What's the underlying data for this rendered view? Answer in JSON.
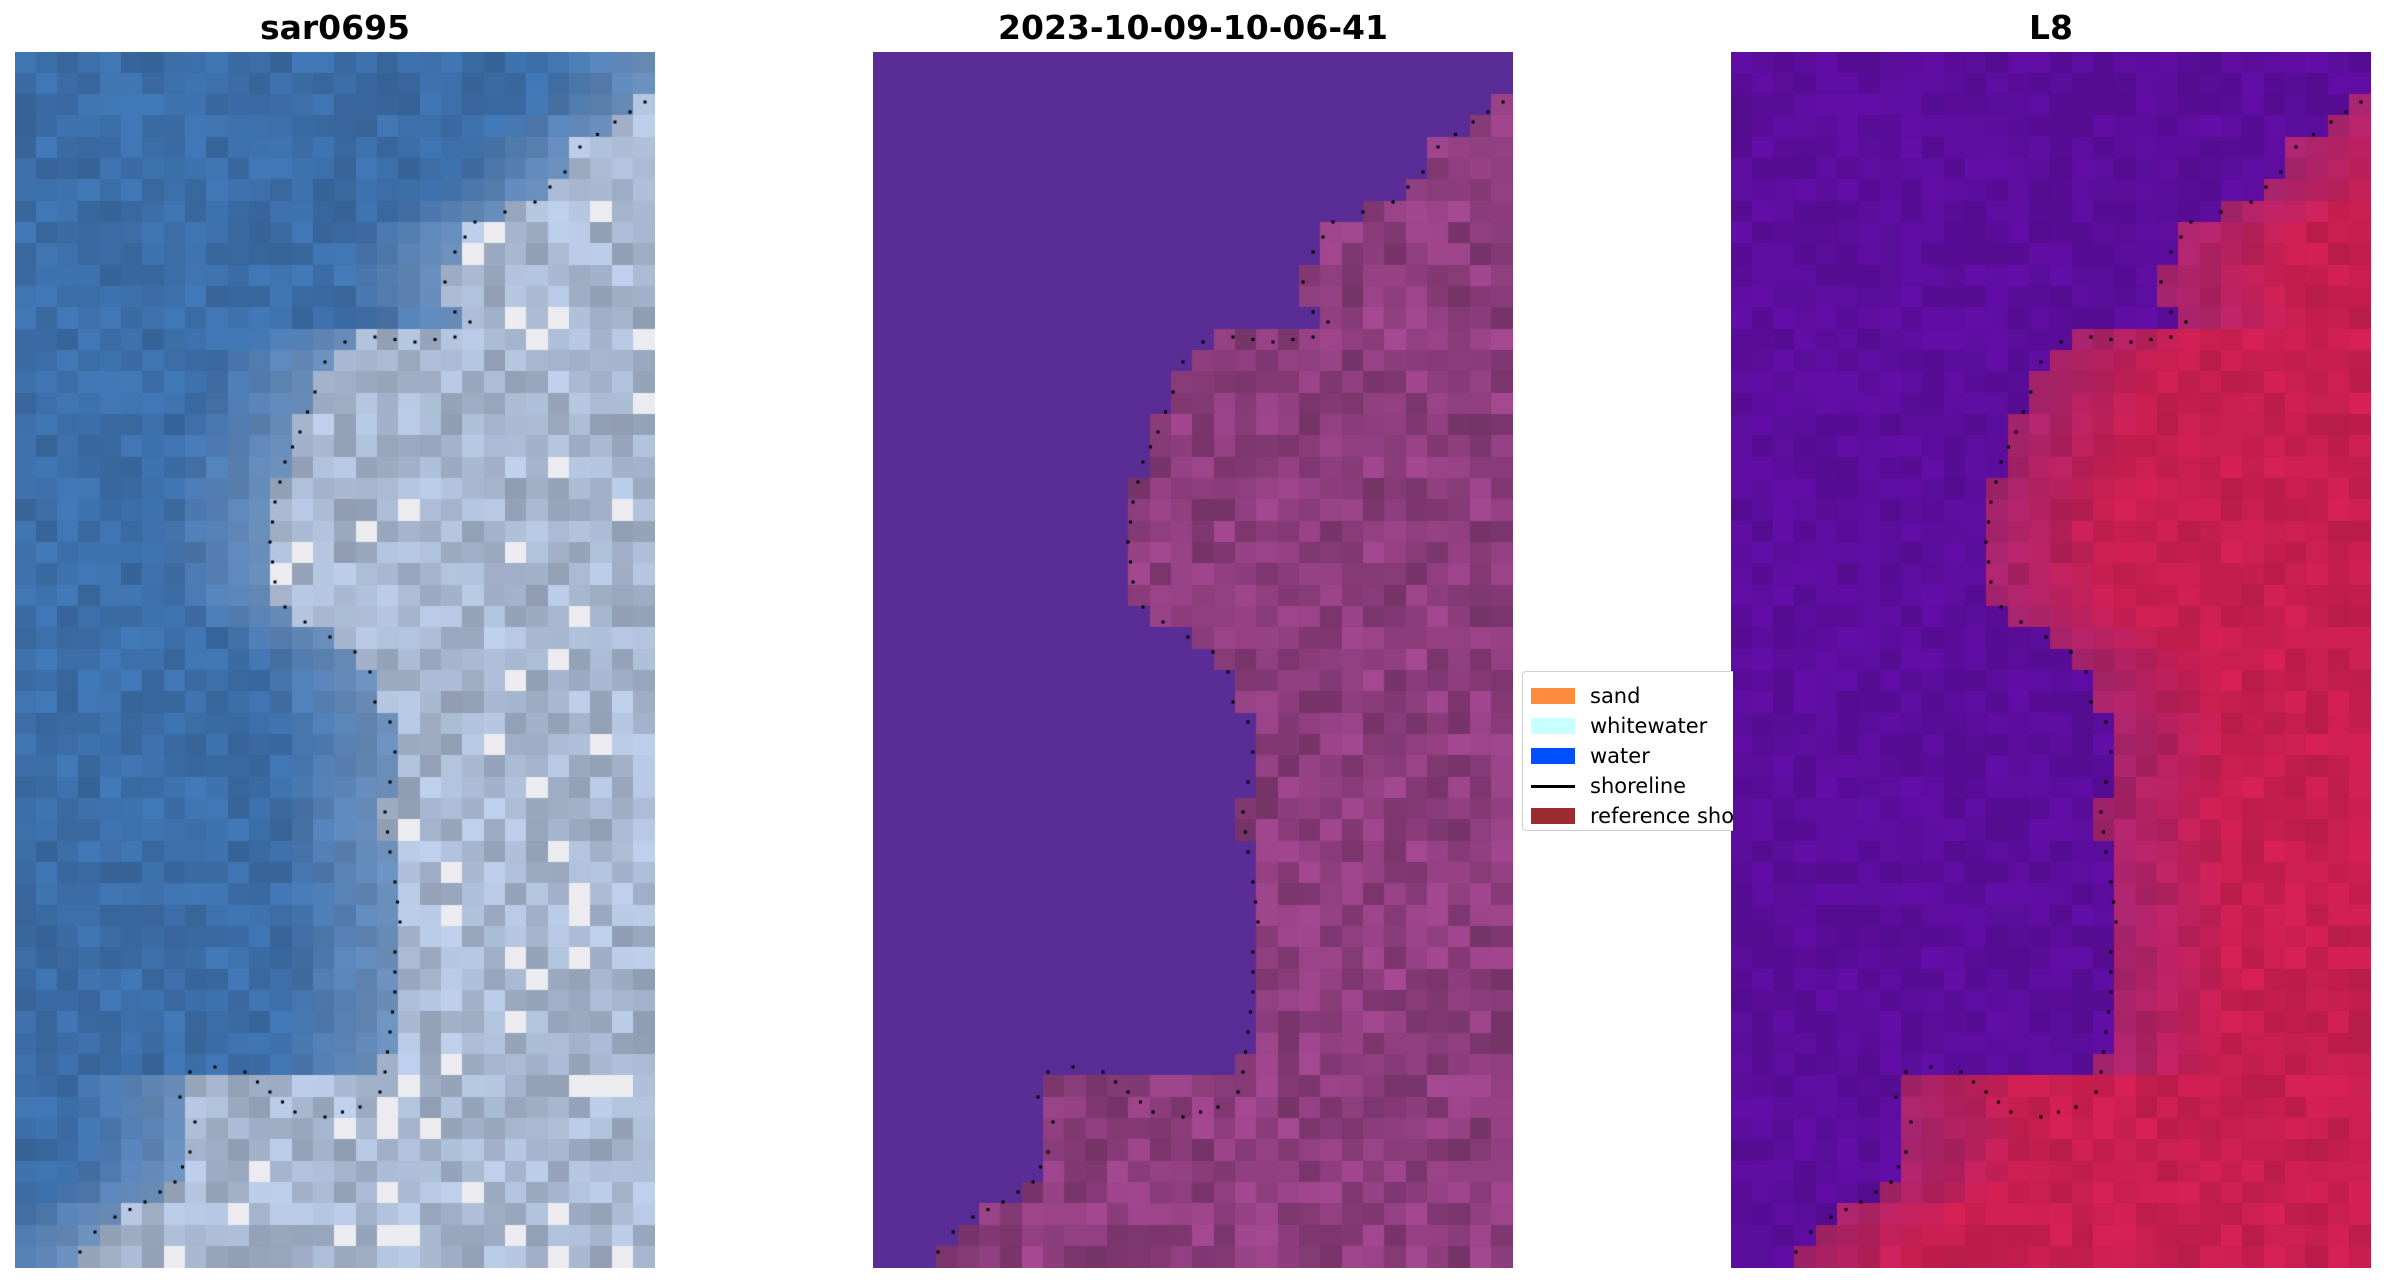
{
  "panels": [
    {
      "title": "sar0695",
      "kind": "rgb"
    },
    {
      "title": "2023-10-09-10-06-41",
      "kind": "classified"
    },
    {
      "title": "L8",
      "kind": "index"
    }
  ],
  "legend": {
    "items": [
      {
        "label": "sand",
        "color": "#ff8c3c",
        "kind": "patch"
      },
      {
        "label": "whitewater",
        "color": "#c8ffff",
        "kind": "patch"
      },
      {
        "label": "water",
        "color": "#0050ff",
        "kind": "patch"
      },
      {
        "label": "shoreline",
        "color": "#000000",
        "kind": "line"
      },
      {
        "label": "reference shoreline",
        "color": "#9b2d32",
        "kind": "patch"
      }
    ]
  },
  "colors": {
    "ocean_rgb": "#3c6ea8",
    "land_rgb": "#a9b9d2",
    "classified_water": "#5a2c96",
    "classified_land": "#8a3c7a",
    "index_water": "#5e0da0",
    "index_land": "#c81e50"
  }
}
